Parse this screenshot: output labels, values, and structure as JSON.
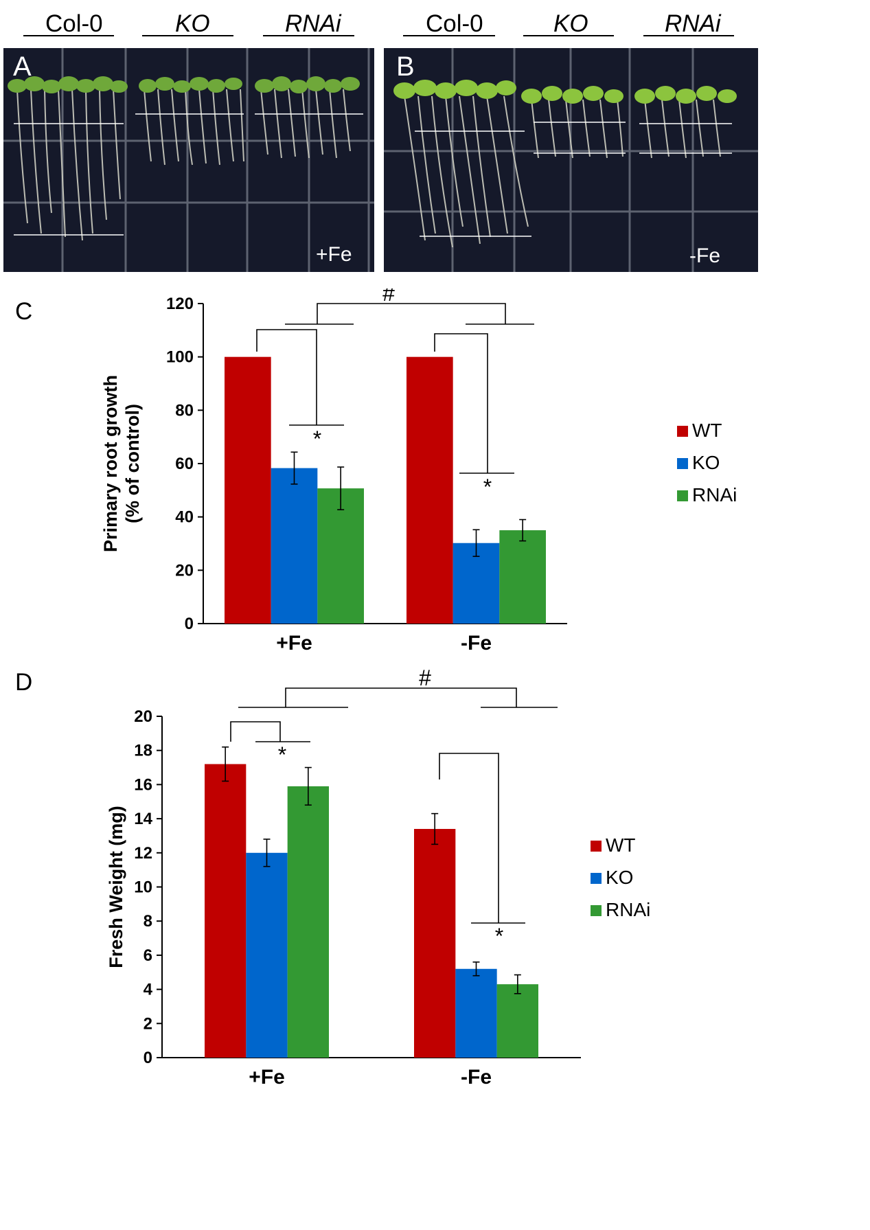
{
  "photo_panels": [
    {
      "panel_label": "A",
      "condition_label": "+Fe",
      "genotypes": [
        "Col-0",
        "KO",
        "RNAi"
      ]
    },
    {
      "panel_label": "B",
      "condition_label": "-Fe",
      "genotypes": [
        "Col-0",
        "KO",
        "RNAi"
      ]
    }
  ],
  "chart_data": [
    {
      "panel_label": "C",
      "type": "bar",
      "categories": [
        "+Fe",
        "-Fe"
      ],
      "series": [
        {
          "name": "WT",
          "color": "#c00000",
          "values": [
            100,
            100
          ],
          "errors": [
            0,
            0
          ]
        },
        {
          "name": "KO",
          "color": "#0066cc",
          "values": [
            58.3,
            30.2
          ],
          "errors": [
            6,
            5
          ]
        },
        {
          "name": "RNAi",
          "color": "#339933",
          "values": [
            50.7,
            35
          ],
          "errors": [
            8,
            4
          ]
        }
      ],
      "ylabel_line1": "Primary root growth",
      "ylabel_line2": "(% of control)",
      "ylim": [
        0,
        120
      ],
      "yticks": [
        "0",
        "20",
        "40",
        "60",
        "80",
        "100",
        "120"
      ],
      "significance_markers": [
        "#",
        "*",
        "*"
      ],
      "legend_position": "right"
    },
    {
      "panel_label": "D",
      "type": "bar",
      "categories": [
        "+Fe",
        "-Fe"
      ],
      "series": [
        {
          "name": "WT",
          "color": "#c00000",
          "values": [
            17.2,
            13.4
          ],
          "errors": [
            1,
            0.9
          ]
        },
        {
          "name": "KO",
          "color": "#0066cc",
          "values": [
            12,
            5.2
          ],
          "errors": [
            0.8,
            0.4
          ]
        },
        {
          "name": "RNAi",
          "color": "#339933",
          "values": [
            15.9,
            4.3
          ],
          "errors": [
            1.1,
            0.55
          ]
        }
      ],
      "ylabel": "Fresh Weight (mg)",
      "ylim": [
        0,
        20
      ],
      "yticks": [
        "0",
        "2",
        "4",
        "6",
        "8",
        "10",
        "12",
        "14",
        "16",
        "18",
        "20"
      ],
      "significance_markers": [
        "#",
        "*",
        "*"
      ],
      "legend_position": "right"
    }
  ]
}
